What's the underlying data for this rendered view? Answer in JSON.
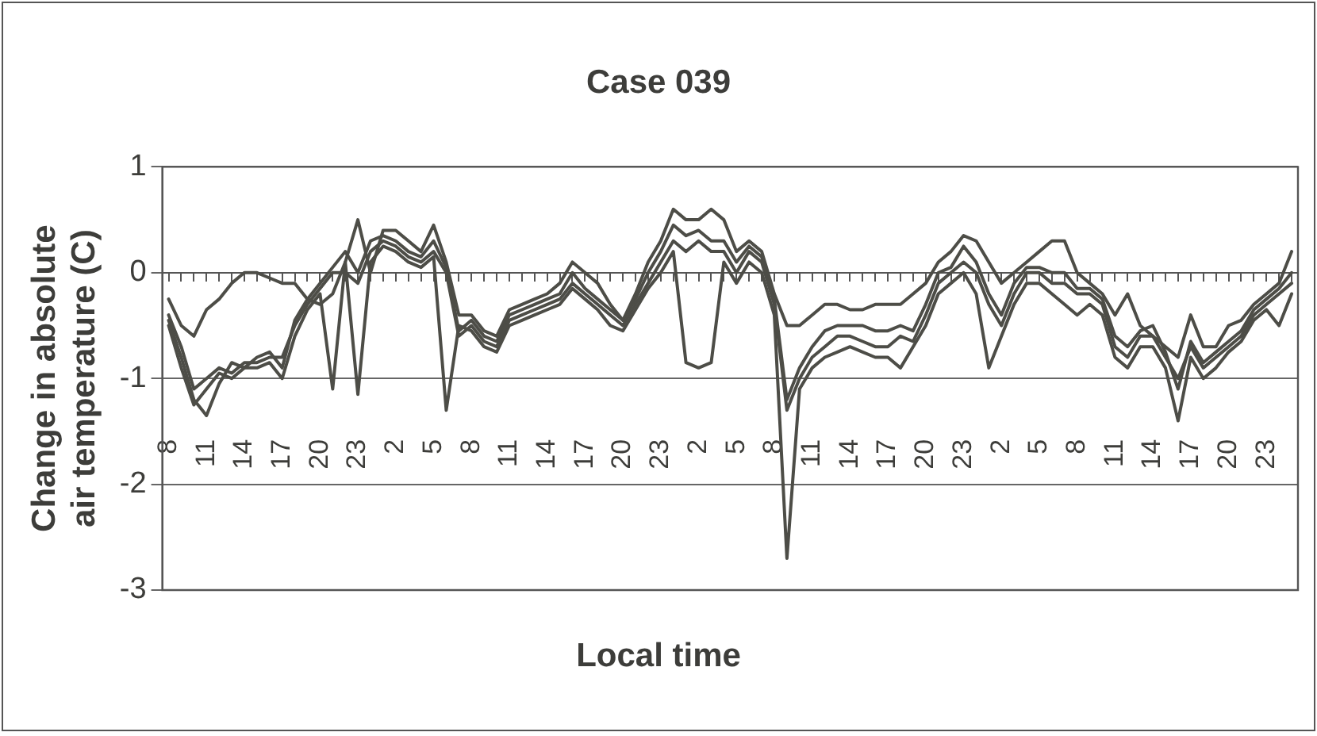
{
  "chart_data": {
    "type": "line",
    "title": "Case 039",
    "xlabel": "Local time",
    "ylabel": "Change in absolute air temperature (C)",
    "categories": [
      "8",
      null,
      null,
      "11",
      null,
      null,
      "14",
      null,
      null,
      "17",
      null,
      null,
      "20",
      null,
      null,
      "23",
      null,
      null,
      "2",
      null,
      null,
      "5",
      null,
      null,
      "8",
      null,
      null,
      "11",
      null,
      null,
      "14",
      null,
      null,
      "17",
      null,
      null,
      "20",
      null,
      null,
      "23",
      null,
      null,
      "2",
      null,
      null,
      "5",
      null,
      null,
      "8",
      null,
      null,
      "11",
      null,
      null,
      "14",
      null,
      null,
      "17",
      null,
      null,
      "20",
      null,
      null,
      "23",
      null,
      null,
      "2",
      null,
      null,
      "5",
      null,
      null,
      "8",
      null,
      null,
      "11",
      null,
      null,
      "14",
      null,
      null,
      "17",
      null,
      null,
      "20",
      null,
      null,
      "23",
      null,
      null
    ],
    "series": [
      {
        "color": "#4d4d47",
        "values": [
          -0.4,
          -0.7,
          -1.1,
          -1.0,
          -0.9,
          -0.95,
          -0.85,
          -0.85,
          -0.8,
          -0.8,
          -0.5,
          -0.3,
          -0.15,
          0.0,
          0.0,
          -0.1,
          0.2,
          0.3,
          0.25,
          0.15,
          0.1,
          0.2,
          0.0,
          -0.6,
          -0.5,
          -0.65,
          -0.7,
          -0.45,
          -0.4,
          -0.35,
          -0.3,
          -0.25,
          -0.1,
          -0.2,
          -0.3,
          -0.4,
          -0.5,
          -0.3,
          -0.1,
          0.1,
          0.3,
          0.2,
          0.3,
          0.2,
          0.2,
          0.0,
          0.2,
          0.1,
          -0.3,
          -1.3,
          -1.0,
          -0.8,
          -0.7,
          -0.6,
          -0.6,
          -0.65,
          -0.7,
          -0.7,
          -0.6,
          -0.65,
          -0.4,
          -0.1,
          0.0,
          0.1,
          0.0,
          -0.3,
          -0.5,
          -0.2,
          0.0,
          0.0,
          -0.1,
          -0.1,
          -0.2,
          -0.2,
          -0.3,
          -0.7,
          -0.8,
          -0.6,
          -0.6,
          -0.8,
          -1.0,
          -0.7,
          -0.9,
          -0.8,
          -0.7,
          -0.6,
          -0.4,
          -0.3,
          -0.2,
          -0.1
        ]
      },
      {
        "color": "#4d4d47",
        "values": [
          -0.25,
          -0.5,
          -0.6,
          -0.35,
          -0.25,
          -0.1,
          0,
          0,
          -0.05,
          -0.1,
          -0.1,
          -0.25,
          -0.3,
          -0.2,
          0.1,
          0.5,
          0.0,
          0.4,
          0.4,
          0.3,
          0.2,
          0.45,
          0.1,
          -0.4,
          -0.4,
          -0.55,
          -0.6,
          -0.35,
          -0.3,
          -0.25,
          -0.2,
          -0.1,
          0.1,
          0.0,
          -0.1,
          -0.3,
          -0.45,
          -0.2,
          0.1,
          0.3,
          0.6,
          0.5,
          0.5,
          0.6,
          0.5,
          0.2,
          0.3,
          0.2,
          -0.2,
          -0.5,
          -0.5,
          -0.4,
          -0.3,
          -0.3,
          -0.35,
          -0.35,
          -0.3,
          -0.3,
          -0.3,
          -0.2,
          -0.1,
          0.1,
          0.2,
          0.35,
          0.3,
          0.1,
          -0.1,
          0.0,
          0.1,
          0.2,
          0.3,
          0.3,
          0.0,
          -0.1,
          -0.2,
          -0.4,
          -0.2,
          -0.5,
          -0.6,
          -0.7,
          -0.8,
          -0.4,
          -0.7,
          -0.7,
          -0.5,
          -0.45,
          -0.3,
          -0.2,
          -0.1,
          0.2
        ]
      },
      {
        "color": "#4d4d47",
        "values": [
          -0.5,
          -0.9,
          -1.25,
          -1.1,
          -0.95,
          -1.0,
          -0.9,
          -0.9,
          -0.85,
          -1.0,
          -0.6,
          -0.35,
          -0.2,
          -1.1,
          0.1,
          -1.15,
          0.1,
          0.25,
          0.2,
          0.1,
          0.05,
          0.15,
          -1.3,
          -0.5,
          -0.55,
          -0.7,
          -0.75,
          -0.5,
          -0.45,
          -0.4,
          -0.35,
          -0.3,
          -0.15,
          -0.25,
          -0.35,
          -0.5,
          -0.55,
          -0.35,
          -0.15,
          0.0,
          0.2,
          -0.85,
          -0.9,
          -0.85,
          0.1,
          -0.1,
          0.1,
          0.0,
          -0.4,
          -2.7,
          -1.1,
          -0.9,
          -0.8,
          -0.75,
          -0.7,
          -0.75,
          -0.8,
          -0.8,
          -0.9,
          -0.7,
          -0.5,
          -0.2,
          -0.1,
          0.0,
          -0.2,
          -0.9,
          -0.6,
          -0.3,
          -0.1,
          -0.1,
          -0.2,
          -0.3,
          -0.4,
          -0.3,
          -0.4,
          -0.8,
          -0.9,
          -0.7,
          -0.7,
          -0.9,
          -1.4,
          -0.8,
          -1.0,
          -0.9,
          -0.75,
          -0.65,
          -0.45,
          -0.35,
          -0.5,
          -0.2
        ]
      },
      {
        "color": "#4d4d47",
        "values": [
          -0.45,
          -0.8,
          -1.2,
          -1.35,
          -1.05,
          -0.85,
          -0.9,
          -0.8,
          -0.75,
          -0.9,
          -0.45,
          -0.25,
          -0.1,
          0.05,
          0.2,
          0.0,
          0.3,
          0.35,
          0.3,
          0.2,
          0.15,
          0.3,
          0.05,
          -0.55,
          -0.45,
          -0.6,
          -0.65,
          -0.4,
          -0.35,
          -0.3,
          -0.25,
          -0.2,
          0.0,
          -0.15,
          -0.25,
          -0.35,
          -0.45,
          -0.25,
          0.0,
          0.2,
          0.45,
          0.35,
          0.4,
          0.3,
          0.3,
          0.1,
          0.25,
          0.15,
          -0.25,
          -1.2,
          -0.9,
          -0.7,
          -0.55,
          -0.5,
          -0.5,
          -0.5,
          -0.55,
          -0.55,
          -0.5,
          -0.55,
          -0.3,
          0.0,
          0.05,
          0.25,
          0.1,
          -0.2,
          -0.4,
          -0.1,
          0.05,
          0.05,
          0.0,
          0.0,
          -0.15,
          -0.15,
          -0.25,
          -0.6,
          -0.7,
          -0.55,
          -0.5,
          -0.75,
          -1.1,
          -0.65,
          -0.85,
          -0.75,
          -0.65,
          -0.55,
          -0.35,
          -0.25,
          -0.15,
          0.0
        ]
      }
    ],
    "ylim": [
      -3,
      1
    ],
    "yticks": [
      1,
      0,
      -1,
      -2,
      -3
    ],
    "grid": "y",
    "legend": false,
    "marker": "none",
    "line_style": "solid"
  }
}
